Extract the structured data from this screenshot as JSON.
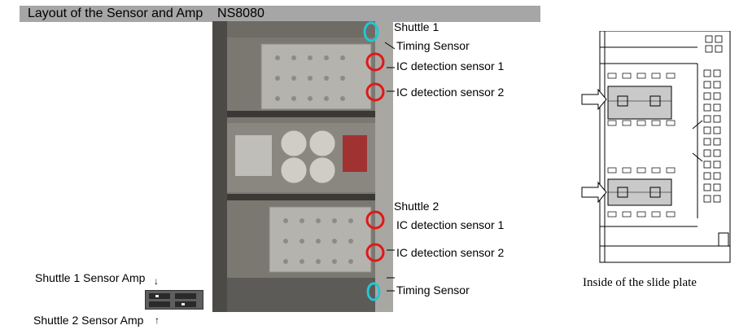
{
  "header": {
    "title": "Layout of the Sensor and Amp    NS8080"
  },
  "photo_labels": {
    "shuttle_1": "Shuttle 1",
    "timing_sensor_1": "Timing Sensor",
    "ic_sensor_1_a": "IC detection sensor 1",
    "ic_sensor_2_a": "IC detection sensor 2",
    "shuttle_2": "Shuttle 2",
    "ic_sensor_1_b": "IC detection sensor 1",
    "ic_sensor_2_b": "IC detection sensor 2",
    "timing_sensor_2": "Timing Sensor"
  },
  "amp": {
    "shuttle_1_label": "Shuttle 1 Sensor Amp",
    "shuttle_2_label": "Shuttle 2 Sensor Amp"
  },
  "diagram": {
    "caption": "Inside of the slide plate"
  },
  "colors": {
    "banner": "#a6a6a6",
    "red_marker": "#e0181a",
    "cyan_marker": "#23c6d6"
  }
}
